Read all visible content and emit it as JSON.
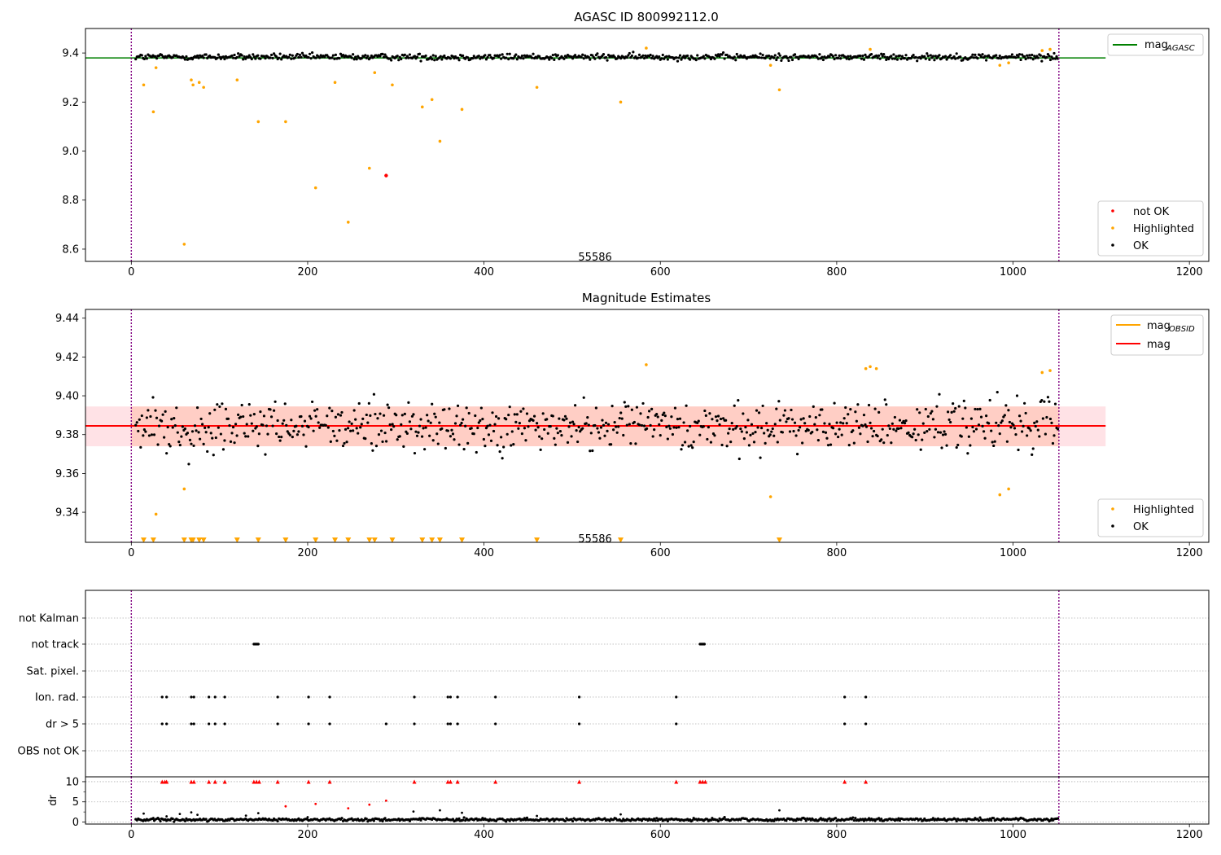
{
  "chart_data": [
    {
      "type": "scatter",
      "title": "AGASC ID 800992112.0",
      "xlim": [
        -52,
        1222
      ],
      "ylim": [
        8.55,
        9.5
      ],
      "x_ticks": [
        0,
        200,
        400,
        600,
        800,
        1000,
        1200
      ],
      "y_ticks": [
        8.6,
        8.8,
        9.0,
        9.2,
        9.4
      ],
      "y_tick_format": 1,
      "grid": false,
      "obsid_bounds": [
        0,
        1052
      ],
      "obsid_label": {
        "text": "55586",
        "x": 526,
        "y": 8.57
      },
      "legend_lines": {
        "placement": "top-right",
        "entries": [
          {
            "label": "mag",
            "sub": "AGASC",
            "color": "#008000"
          }
        ]
      },
      "legend_points": {
        "placement": "bottom-right",
        "entries": [
          {
            "label": "not OK",
            "color": "#ff0000"
          },
          {
            "label": "Highlighted",
            "color": "#ffa500"
          },
          {
            "label": "OK",
            "color": "#000000"
          }
        ]
      },
      "hlines": [
        {
          "y": 9.38,
          "x0": -52,
          "x1": 1105,
          "color": "#008000"
        }
      ],
      "ok_series": {
        "name": "OK",
        "color": "#000000",
        "x_start": 5,
        "x_end": 1052,
        "step": 1.4,
        "center": 9.384,
        "spread": 0.009
      },
      "highlighted": {
        "name": "Highlighted",
        "color": "#ffa500",
        "points": [
          [
            14,
            9.27
          ],
          [
            25,
            9.16
          ],
          [
            28,
            9.34
          ],
          [
            60,
            8.62
          ],
          [
            68,
            9.29
          ],
          [
            70,
            9.27
          ],
          [
            77,
            9.28
          ],
          [
            82,
            9.26
          ],
          [
            120,
            9.29
          ],
          [
            144,
            9.12
          ],
          [
            175,
            9.12
          ],
          [
            209,
            8.85
          ],
          [
            231,
            9.28
          ],
          [
            246,
            8.71
          ],
          [
            270,
            8.93
          ],
          [
            276,
            9.32
          ],
          [
            296,
            9.27
          ],
          [
            330,
            9.18
          ],
          [
            341,
            9.21
          ],
          [
            350,
            9.04
          ],
          [
            375,
            9.17
          ],
          [
            460,
            9.26
          ],
          [
            555,
            9.2
          ],
          [
            584,
            9.42
          ],
          [
            725,
            9.35
          ],
          [
            735,
            9.25
          ],
          [
            838,
            9.415
          ],
          [
            985,
            9.35
          ],
          [
            995,
            9.36
          ],
          [
            1033,
            9.41
          ],
          [
            1042,
            9.415
          ]
        ]
      },
      "not_ok": {
        "name": "not OK",
        "color": "#ff0000",
        "points": [
          [
            289,
            8.9
          ]
        ]
      }
    },
    {
      "type": "scatter",
      "title": "Magnitude Estimates",
      "xlim": [
        -52,
        1222
      ],
      "ylim": [
        9.3245,
        9.4445
      ],
      "x_ticks": [
        0,
        200,
        400,
        600,
        800,
        1000,
        1200
      ],
      "y_ticks": [
        9.34,
        9.36,
        9.38,
        9.4,
        9.42,
        9.44
      ],
      "y_tick_format": 2,
      "grid": false,
      "obsid_bounds": [
        0,
        1052
      ],
      "obsid_label": {
        "text": "55586",
        "x": 526,
        "y": 9.3265
      },
      "legend_lines": {
        "placement": "top-right",
        "entries": [
          {
            "label": "mag",
            "sub": "OBSID",
            "color": "#ffa500"
          },
          {
            "label": "mag",
            "sub": "",
            "color": "#ff0000"
          }
        ]
      },
      "legend_points": {
        "placement": "bottom-right",
        "entries": [
          {
            "label": "Highlighted",
            "color": "#ffa500"
          },
          {
            "label": "OK",
            "color": "#000000"
          }
        ]
      },
      "bands": [
        {
          "y0": 9.374,
          "y1": 9.3945,
          "x0": -52,
          "x1": 1105,
          "color": "#ffb6c1",
          "opacity": 0.4
        },
        {
          "y0": 9.374,
          "y1": 9.3945,
          "x0": 0,
          "x1": 1052,
          "color": "#ffa07a",
          "opacity": 0.3
        }
      ],
      "hlines": [
        {
          "y": 9.3845,
          "x0": 0,
          "x1": 1052,
          "color": "#ffa500"
        },
        {
          "y": 9.3845,
          "x0": -52,
          "x1": 1105,
          "color": "#ff0000"
        }
      ],
      "ok_series": {
        "name": "OK",
        "color": "#000000",
        "x_start": 5,
        "x_end": 1052,
        "step": 1.4,
        "center": 9.384,
        "spread": 0.009
      },
      "highlighted": {
        "name": "Highlighted",
        "color": "#ffa500",
        "points": [
          [
            28,
            9.339
          ],
          [
            60,
            9.352
          ],
          [
            584,
            9.416
          ],
          [
            725,
            9.348
          ],
          [
            833,
            9.414
          ],
          [
            838,
            9.415
          ],
          [
            845,
            9.414
          ],
          [
            985,
            9.349
          ],
          [
            995,
            9.352
          ],
          [
            1033,
            9.412
          ],
          [
            1042,
            9.413
          ]
        ]
      },
      "low_markers": {
        "color": "#ffa500",
        "y": 9.3255,
        "x": [
          14,
          25,
          60,
          68,
          70,
          77,
          82,
          120,
          144,
          175,
          209,
          231,
          246,
          270,
          276,
          296,
          330,
          341,
          350,
          375,
          460,
          555,
          735
        ]
      }
    },
    {
      "type": "scatter",
      "xlim": [
        -52,
        1222
      ],
      "flag_categories": [
        "not Kalman",
        "not track",
        "Sat. pixel.",
        "Ion. rad.",
        "dr > 5",
        "OBS not OK"
      ],
      "flags": {
        "not Kalman": [],
        "not track": [
          139,
          140,
          141,
          142,
          143,
          144,
          645,
          646,
          647,
          648,
          649,
          650
        ],
        "Sat. pixel.": [],
        "Ion. rad.": [
          35,
          40,
          68,
          71,
          88,
          95,
          106,
          166,
          201,
          225,
          321,
          359,
          362,
          370,
          413,
          508,
          618,
          809,
          833
        ],
        "dr > 5": [
          35,
          40,
          68,
          71,
          88,
          95,
          106,
          166,
          201,
          225,
          289,
          321,
          359,
          362,
          370,
          413,
          508,
          618,
          809,
          833
        ],
        "OBS not OK": []
      },
      "obsid_bounds": [
        0,
        1052
      ]
    },
    {
      "type": "scatter",
      "ylabel": "dr",
      "xlim": [
        -52,
        1222
      ],
      "ylim": [
        -0.5,
        11.2
      ],
      "x_ticks": [
        0,
        200,
        400,
        600,
        800,
        1000,
        1200
      ],
      "y_ticks": [
        0,
        5,
        10
      ],
      "y_minor_ticks": [
        2.5,
        7.5
      ],
      "clip_markers": {
        "color": "#ff0000",
        "y": 10,
        "x": [
          35,
          38,
          40,
          68,
          71,
          88,
          95,
          106,
          139,
          142,
          145,
          166,
          201,
          225,
          321,
          359,
          362,
          370,
          413,
          508,
          618,
          645,
          648,
          651,
          809,
          833
        ]
      },
      "red_points": [
        [
          175,
          3.9
        ],
        [
          209,
          4.5
        ],
        [
          246,
          3.4
        ],
        [
          270,
          4.3
        ],
        [
          289,
          5.3
        ]
      ],
      "ok_series": {
        "color": "#000000",
        "x_start": 5,
        "x_end": 1052,
        "step": 1.4,
        "center": 0.6,
        "spread": 0.25
      },
      "scattered_points": [
        [
          14,
          2.1
        ],
        [
          25,
          1.0
        ],
        [
          40,
          1.4
        ],
        [
          55,
          2.0
        ],
        [
          68,
          2.4
        ],
        [
          75,
          1.8
        ],
        [
          130,
          1.6
        ],
        [
          144,
          2.2
        ],
        [
          200,
          1.2
        ],
        [
          320,
          2.6
        ],
        [
          350,
          2.9
        ],
        [
          375,
          2.3
        ],
        [
          460,
          1.5
        ],
        [
          555,
          1.9
        ],
        [
          735,
          2.9
        ]
      ],
      "obsid_bounds": [
        0,
        1052
      ]
    }
  ]
}
